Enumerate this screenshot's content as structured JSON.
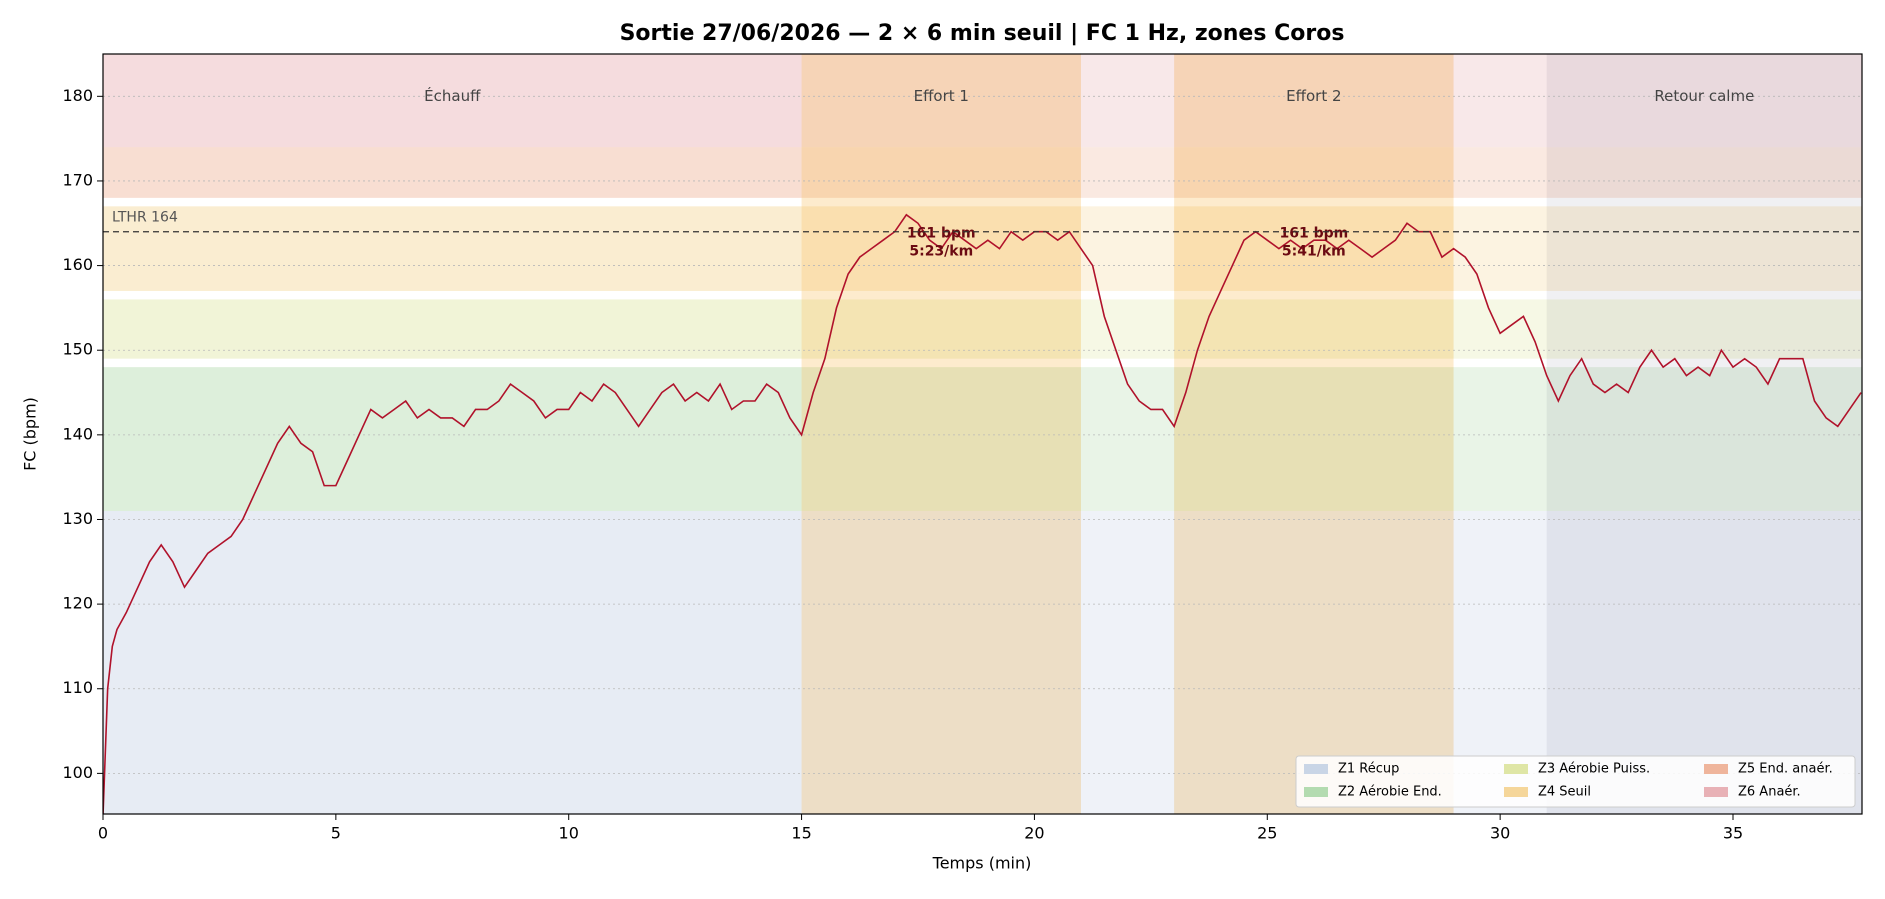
{
  "chart_data": {
    "type": "line",
    "title": "Sortie 27/06/2026 — 2 × 6 min seuil  |  FC 1 Hz, zones Coros",
    "xlabel": "Temps (min)",
    "ylabel": "FC (bpm)",
    "xlim": [
      0,
      37.77
    ],
    "ylim": [
      95.2,
      185
    ],
    "xticks": [
      0,
      5,
      10,
      15,
      20,
      25,
      30,
      35
    ],
    "yticks": [
      100,
      110,
      120,
      130,
      140,
      150,
      160,
      170,
      180
    ],
    "grid": true,
    "legend": "lower right",
    "color": "#b0122b",
    "lthr": {
      "value": 164,
      "label": "LTHR 164"
    },
    "zones": [
      {
        "name": "Z1 Récup",
        "color": "#c9d5e6",
        "range": [
          90,
          131
        ]
      },
      {
        "name": "Z2 Aérobie End.",
        "color": "#b3dbb0",
        "range": [
          131,
          148
        ]
      },
      {
        "name": "Z3 Aérobie Puiss.",
        "color": "#dfe6a6",
        "range": [
          149,
          156
        ]
      },
      {
        "name": "Z4 Seuil",
        "color": "#f5d69a",
        "range": [
          157,
          167
        ]
      },
      {
        "name": "Z5 End. anaér.",
        "color": "#efb59c",
        "range": [
          168,
          174
        ]
      },
      {
        "name": "Z6 Anaér.",
        "color": "#e8b1b6",
        "range": [
          174,
          190
        ]
      }
    ],
    "segments": [
      {
        "label": "Échauff",
        "start": 0,
        "end": 15
      },
      {
        "label": "Effort 1",
        "start": 15,
        "end": 21,
        "color": "#f8c670",
        "annotation": [
          "161 bpm",
          "5:23/km"
        ]
      },
      {
        "start": 21,
        "end": 23,
        "color": "#ffffff"
      },
      {
        "label": "Effort 2",
        "start": 23,
        "end": 29,
        "color": "#f8c670",
        "annotation": [
          "161 bpm",
          "5:41/km"
        ]
      },
      {
        "start": 29,
        "end": 31,
        "color": "#ffffff"
      },
      {
        "label": "Retour calme",
        "start": 31,
        "end": 37.77,
        "color": "#d4d4dc"
      }
    ],
    "x": [
      0,
      0.1,
      0.2,
      0.3,
      0.5,
      0.75,
      1,
      1.25,
      1.5,
      1.75,
      2,
      2.25,
      2.5,
      2.75,
      3,
      3.25,
      3.5,
      3.75,
      4,
      4.25,
      4.5,
      4.75,
      5,
      5.25,
      5.5,
      5.75,
      6,
      6.25,
      6.5,
      6.75,
      7,
      7.25,
      7.5,
      7.75,
      8,
      8.25,
      8.5,
      8.75,
      9,
      9.25,
      9.5,
      9.75,
      10,
      10.25,
      10.5,
      10.75,
      11,
      11.25,
      11.5,
      11.75,
      12,
      12.25,
      12.5,
      12.75,
      13,
      13.25,
      13.5,
      13.75,
      14,
      14.25,
      14.5,
      14.75,
      15,
      15.25,
      15.5,
      15.75,
      16,
      16.25,
      16.5,
      16.75,
      17,
      17.25,
      17.5,
      17.75,
      18,
      18.25,
      18.5,
      18.75,
      19,
      19.25,
      19.5,
      19.75,
      20,
      20.25,
      20.5,
      20.75,
      21,
      21.25,
      21.5,
      21.75,
      22,
      22.25,
      22.5,
      22.75,
      23,
      23.25,
      23.5,
      23.75,
      24,
      24.25,
      24.5,
      24.75,
      25,
      25.25,
      25.5,
      25.75,
      26,
      26.25,
      26.5,
      26.75,
      27,
      27.25,
      27.5,
      27.75,
      28,
      28.25,
      28.5,
      28.75,
      29,
      29.25,
      29.5,
      29.75,
      30,
      30.25,
      30.5,
      30.75,
      31,
      31.25,
      31.5,
      31.75,
      32,
      32.25,
      32.5,
      32.75,
      33,
      33.25,
      33.5,
      33.75,
      34,
      34.25,
      34.5,
      34.75,
      35,
      35.25,
      35.5,
      35.75,
      36,
      36.25,
      36.5,
      36.75,
      37,
      37.25,
      37.5,
      37.75
    ],
    "values": [
      95,
      110,
      115,
      117,
      119,
      122,
      125,
      127,
      125,
      122,
      124,
      126,
      127,
      128,
      130,
      133,
      136,
      139,
      141,
      139,
      138,
      134,
      134,
      137,
      140,
      143,
      142,
      143,
      144,
      142,
      143,
      142,
      142,
      141,
      143,
      143,
      144,
      146,
      145,
      144,
      142,
      143,
      143,
      145,
      144,
      146,
      145,
      143,
      141,
      143,
      145,
      146,
      144,
      145,
      144,
      146,
      143,
      144,
      144,
      146,
      145,
      142,
      140,
      145,
      149,
      155,
      159,
      161,
      162,
      163,
      164,
      166,
      165,
      163,
      162,
      164,
      163,
      162,
      163,
      162,
      164,
      163,
      164,
      164,
      163,
      164,
      162,
      160,
      154,
      150,
      146,
      144,
      143,
      143,
      141,
      145,
      150,
      154,
      157,
      160,
      163,
      164,
      163,
      162,
      163,
      162,
      163,
      163,
      162,
      163,
      162,
      161,
      162,
      163,
      165,
      164,
      164,
      161,
      162,
      161,
      159,
      155,
      152,
      153,
      154,
      151,
      147,
      144,
      147,
      149,
      146,
      145,
      146,
      145,
      148,
      150,
      148,
      149,
      147,
      148,
      147,
      150,
      148,
      149,
      148,
      146,
      149,
      149,
      149,
      144,
      142,
      141,
      143,
      145
    ]
  }
}
